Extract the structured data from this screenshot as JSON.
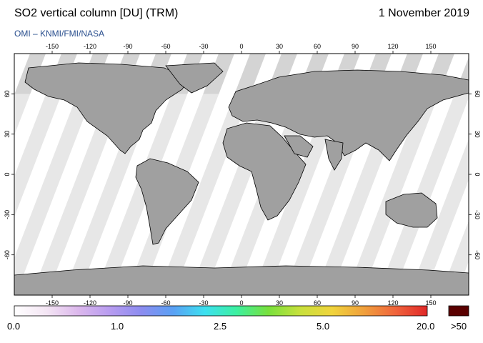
{
  "header": {
    "title": "SO2 vertical column [DU] (TRM)",
    "date": "1 November 2019",
    "subtitle": "OMI  –  KNMI/FMI/NASA"
  },
  "map": {
    "projection": "plate-carree",
    "lon_range": [
      -180,
      180
    ],
    "lat_range": [
      -90,
      90
    ],
    "lon_ticks": [
      "-150",
      "-120",
      "-90",
      "-60",
      "-30",
      "0",
      "30",
      "60",
      "90",
      "120",
      "150"
    ],
    "lat_ticks": [
      "60",
      "30",
      "0",
      "-30",
      "-60"
    ],
    "colors": {
      "background_nodata": "#d4d4d4",
      "land_nodata": "#a0a0a0",
      "swath_data": "#ffffff",
      "coastline": "#000000"
    }
  },
  "colorbar": {
    "labels": [
      "0.0",
      "1.0",
      "2.5",
      "5.0",
      "20.0"
    ],
    "overflow_label": ">50",
    "overflow_color": "#5a0000",
    "stops": [
      "#ffffff",
      "#f4e6f4",
      "#dcb8ec",
      "#b89cf0",
      "#8c8cf0",
      "#5aa0f4",
      "#3ce0f0",
      "#3cf0a0",
      "#78e03c",
      "#c8e03c",
      "#f0d43c",
      "#f0a03c",
      "#f0643c",
      "#e02828"
    ]
  }
}
